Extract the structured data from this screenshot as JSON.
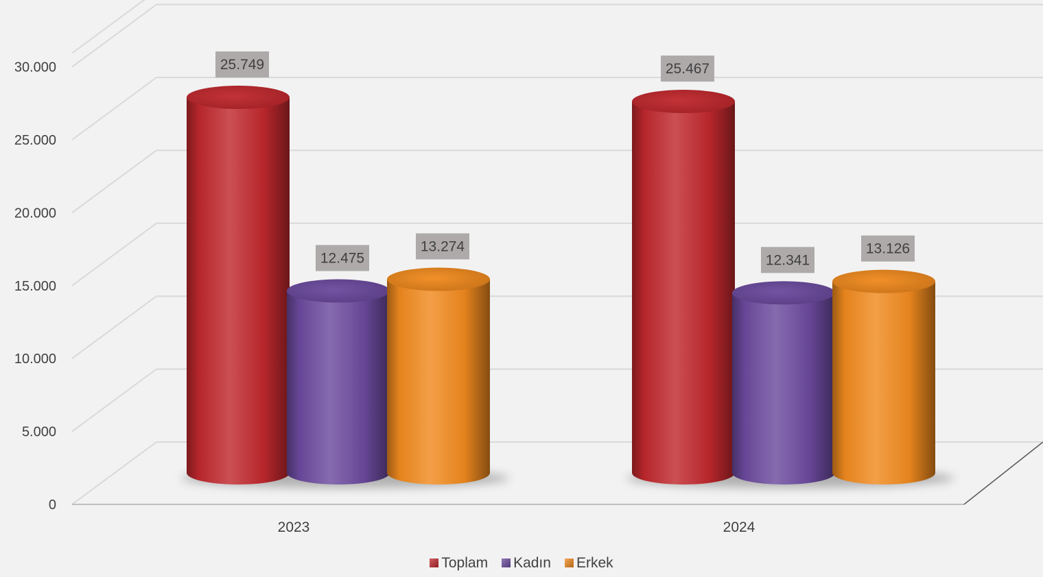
{
  "chart_data": {
    "type": "bar",
    "style": "3d-cylinder",
    "categories": [
      "2023",
      "2024"
    ],
    "series": [
      {
        "name": "Toplam",
        "values": [
          25749,
          25467
        ],
        "labels": [
          "25.749",
          "25.467"
        ],
        "color": "#c0282d"
      },
      {
        "name": "Kadın",
        "values": [
          12475,
          12341
        ],
        "labels": [
          "12.475",
          "12.341"
        ],
        "color": "#6b4a9e"
      },
      {
        "name": "Erkek",
        "values": [
          13274,
          13126
        ],
        "labels": [
          "13.274",
          "13.126"
        ],
        "color": "#f08a1e"
      }
    ],
    "yticks": [
      {
        "value": 0,
        "label": "0"
      },
      {
        "value": 5000,
        "label": "5.000"
      },
      {
        "value": 10000,
        "label": "10.000"
      },
      {
        "value": 15000,
        "label": "15.000"
      },
      {
        "value": 20000,
        "label": "20.000"
      },
      {
        "value": 25000,
        "label": "25.000"
      },
      {
        "value": 30000,
        "label": "30.000"
      }
    ],
    "ylim": [
      0,
      30000
    ],
    "title": "",
    "xlabel": "",
    "ylabel": "",
    "grid": true,
    "legend": "bottom-center",
    "label_box_color": "#aeaaaa"
  }
}
